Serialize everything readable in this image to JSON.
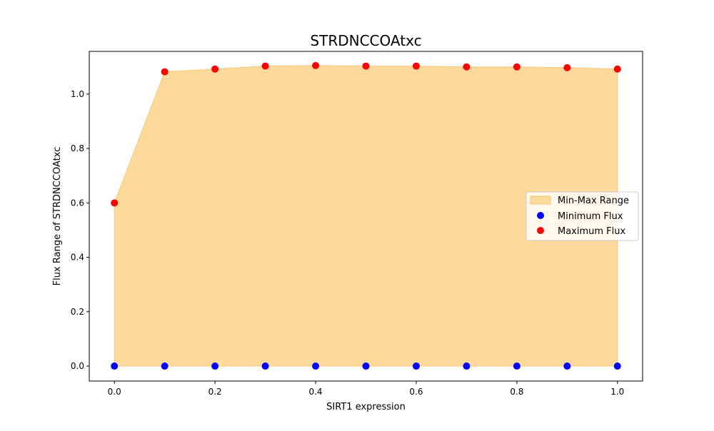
{
  "chart_data": {
    "type": "scatter",
    "title": "STRDNCCOAtxc",
    "xlabel": "SIRT1 expression",
    "ylabel": "Flux Range of STRDNCCOAtxc",
    "x": [
      0.0,
      0.1,
      0.2,
      0.3,
      0.4,
      0.5,
      0.6,
      0.7,
      0.8,
      0.9,
      1.0
    ],
    "series": [
      {
        "name": "Minimum Flux",
        "values": [
          0,
          0,
          0,
          0,
          0,
          0,
          0,
          0,
          0,
          0,
          0
        ],
        "color": "#0000ff"
      },
      {
        "name": "Maximum Flux",
        "values": [
          0.6,
          1.082,
          1.092,
          1.103,
          1.105,
          1.103,
          1.103,
          1.1,
          1.1,
          1.097,
          1.092
        ],
        "color": "#ff0000"
      }
    ],
    "fill": {
      "name": "Min-Max Range",
      "color": "#fdd99b",
      "edge_color": "#f8c777"
    },
    "xlim": [
      -0.05,
      1.05
    ],
    "ylim": [
      -0.055,
      1.157
    ],
    "xticks": [
      0.0,
      0.2,
      0.4,
      0.6,
      0.8,
      1.0
    ],
    "xtick_labels": [
      "0.0",
      "0.2",
      "0.4",
      "0.6",
      "0.8",
      "1.0"
    ],
    "yticks": [
      0.0,
      0.2,
      0.4,
      0.6,
      0.8,
      1.0
    ],
    "ytick_labels": [
      "0.0",
      "0.2",
      "0.4",
      "0.6",
      "0.8",
      "1.0"
    ],
    "grid": false,
    "legend_position": "center-right",
    "legend": [
      "Min-Max Range",
      "Minimum Flux",
      "Maximum Flux"
    ]
  }
}
